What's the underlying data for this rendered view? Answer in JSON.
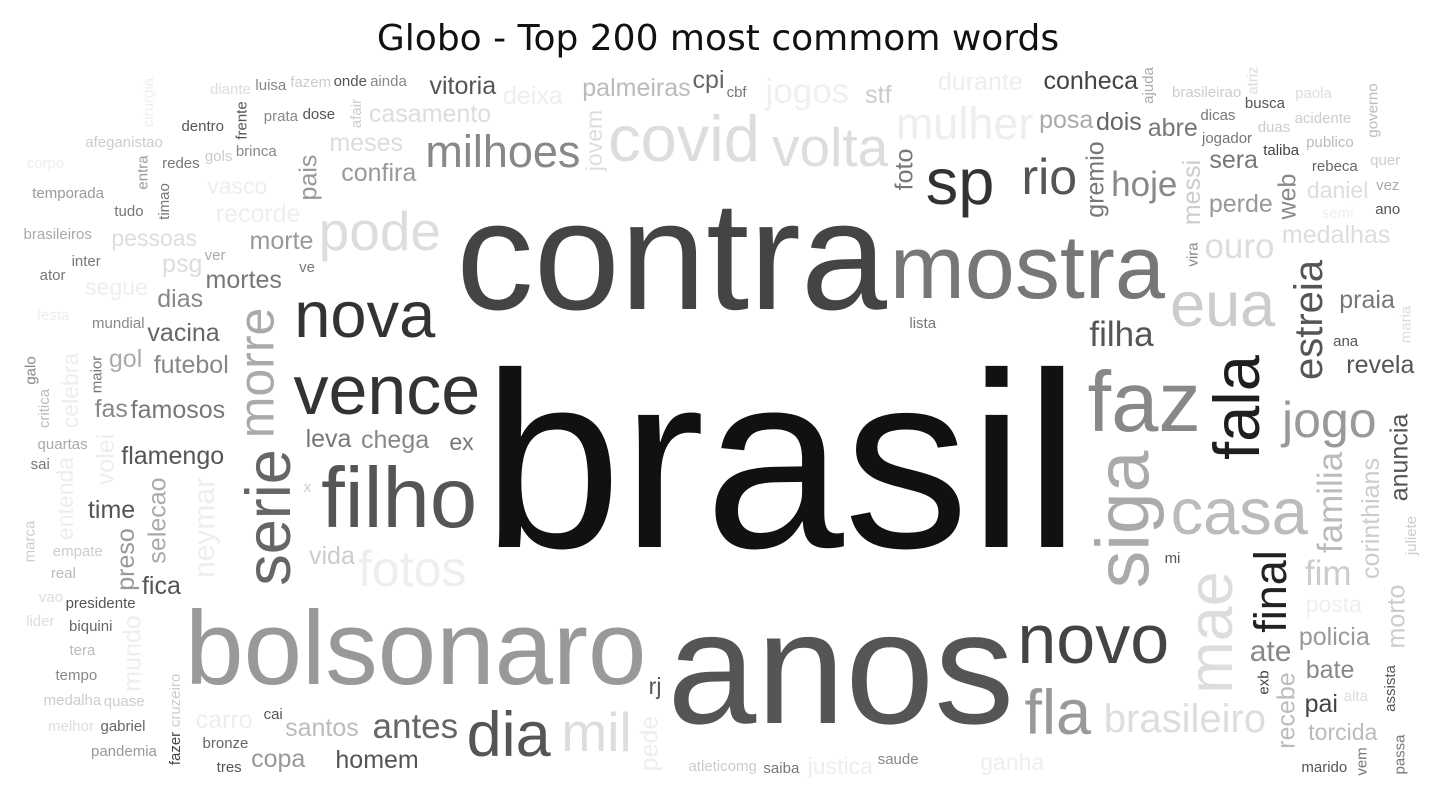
{
  "chart_data": {
    "type": "wordcloud",
    "title": "Globo - Top 200 most commom words",
    "colormap": "grayscale",
    "words": [
      {
        "text": "brasil",
        "weight": 100,
        "color": "#111111"
      },
      {
        "text": "anos",
        "weight": 64,
        "color": "#555555"
      },
      {
        "text": "contra",
        "weight": 62,
        "color": "#444444"
      },
      {
        "text": "bolsonaro",
        "weight": 42,
        "color": "#999999"
      },
      {
        "text": "mostra",
        "weight": 36,
        "color": "#777777"
      },
      {
        "text": "filho",
        "weight": 34,
        "color": "#555555"
      },
      {
        "text": "faz",
        "weight": 34,
        "color": "#888888"
      },
      {
        "text": "siga",
        "weight": 30,
        "color": "#aaaaaa"
      },
      {
        "text": "vence",
        "weight": 28,
        "color": "#333333"
      },
      {
        "text": "novo",
        "weight": 28,
        "color": "#444444"
      },
      {
        "text": "casa",
        "weight": 26,
        "color": "#bbbbbb"
      },
      {
        "text": "fala",
        "weight": 26,
        "color": "#1e1e1e"
      },
      {
        "text": "nova",
        "weight": 26,
        "color": "#333333"
      },
      {
        "text": "sp",
        "weight": 26,
        "color": "#333333"
      },
      {
        "text": "covid",
        "weight": 26,
        "color": "#dddddd"
      },
      {
        "text": "mae",
        "weight": 25,
        "color": "#dddddd"
      },
      {
        "text": "eua",
        "weight": 25,
        "color": "#cccccc"
      },
      {
        "text": "fla",
        "weight": 25,
        "color": "#999999"
      },
      {
        "text": "dia",
        "weight": 25,
        "color": "#555555"
      },
      {
        "text": "serie",
        "weight": 25,
        "color": "#666666"
      },
      {
        "text": "volta",
        "weight": 22,
        "color": "#dddddd"
      },
      {
        "text": "pode",
        "weight": 22,
        "color": "#dddddd"
      },
      {
        "text": "mil",
        "weight": 22,
        "color": "#dddddd"
      },
      {
        "text": "morre",
        "weight": 20,
        "color": "#aaaaaa"
      },
      {
        "text": "fotos",
        "weight": 20,
        "color": "#eeeeee"
      },
      {
        "text": "rio",
        "weight": 20,
        "color": "#555555"
      },
      {
        "text": "jogo",
        "weight": 20,
        "color": "#999999"
      },
      {
        "text": "final",
        "weight": 18,
        "color": "#222222"
      },
      {
        "text": "milhoes",
        "weight": 18,
        "color": "#888888"
      },
      {
        "text": "mulher",
        "weight": 18,
        "color": "#eeeeee"
      },
      {
        "text": "brasileiro",
        "weight": 16,
        "color": "#dddddd"
      },
      {
        "text": "estreia",
        "weight": 16,
        "color": "#555555"
      },
      {
        "text": "filha",
        "weight": 14,
        "color": "#555555"
      },
      {
        "text": "antes",
        "weight": 14,
        "color": "#666666"
      },
      {
        "text": "hoje",
        "weight": 14,
        "color": "#888888"
      },
      {
        "text": "familia",
        "weight": 14,
        "color": "#bbbbbb"
      },
      {
        "text": "ouro",
        "weight": 14,
        "color": "#dddddd"
      },
      {
        "text": "jogos",
        "weight": 14,
        "color": "#f0f0f0"
      },
      {
        "text": "fim",
        "weight": 14,
        "color": "#cccccc"
      },
      {
        "text": "neymar",
        "weight": 12,
        "color": "#eeeeee"
      },
      {
        "text": "ate",
        "weight": 12,
        "color": "#888888"
      },
      {
        "text": "chega",
        "weight": 10,
        "color": "#888888"
      },
      {
        "text": "flamengo",
        "weight": 10,
        "color": "#555555"
      },
      {
        "text": "gremio",
        "weight": 10,
        "color": "#777777"
      },
      {
        "text": "famosos",
        "weight": 10,
        "color": "#777777"
      },
      {
        "text": "futebol",
        "weight": 10,
        "color": "#888888"
      },
      {
        "text": "mortes",
        "weight": 10,
        "color": "#777777"
      },
      {
        "text": "corinthians",
        "weight": 10,
        "color": "#cccccc"
      },
      {
        "text": "palmeiras",
        "weight": 10,
        "color": "#bbbbbb"
      },
      {
        "text": "confira",
        "weight": 10,
        "color": "#999999"
      },
      {
        "text": "morte",
        "weight": 10,
        "color": "#999999"
      },
      {
        "text": "pede",
        "weight": 10,
        "color": "#eeeeee"
      },
      {
        "text": "perde",
        "weight": 10,
        "color": "#999999"
      },
      {
        "text": "revela",
        "weight": 10,
        "color": "#555555"
      },
      {
        "text": "homem",
        "weight": 10,
        "color": "#555555"
      },
      {
        "text": "anuncia",
        "weight": 10,
        "color": "#555555"
      },
      {
        "text": "policia",
        "weight": 10,
        "color": "#999999"
      },
      {
        "text": "santos",
        "weight": 10,
        "color": "#bbbbbb"
      },
      {
        "text": "vacina",
        "weight": 10,
        "color": "#666666"
      },
      {
        "text": "selecao",
        "weight": 10,
        "color": "#aaaaaa"
      },
      {
        "text": "posa",
        "weight": 10,
        "color": "#aaaaaa"
      },
      {
        "text": "deixa",
        "weight": 10,
        "color": "#eeeeee"
      },
      {
        "text": "durante",
        "weight": 10,
        "color": "#eeeeee"
      },
      {
        "text": "messi",
        "weight": 10,
        "color": "#cccccc"
      },
      {
        "text": "recorde",
        "weight": 10,
        "color": "#eeeeee"
      },
      {
        "text": "casamento",
        "weight": 10,
        "color": "#dddddd"
      },
      {
        "text": "praia",
        "weight": 10,
        "color": "#777777"
      },
      {
        "text": "recebe",
        "weight": 10,
        "color": "#bbbbbb"
      },
      {
        "text": "meses",
        "weight": 10,
        "color": "#dddddd"
      },
      {
        "text": "leva",
        "weight": 10,
        "color": "#777777"
      },
      {
        "text": "bate",
        "weight": 10,
        "color": "#888888"
      },
      {
        "text": "pais",
        "weight": 10,
        "color": "#999999"
      },
      {
        "text": "abre",
        "weight": 10,
        "color": "#777777"
      },
      {
        "text": "medalhas",
        "weight": 10,
        "color": "#dddddd"
      },
      {
        "text": "vida",
        "weight": 10,
        "color": "#cccccc"
      },
      {
        "text": "foto",
        "weight": 10,
        "color": "#777777"
      },
      {
        "text": "dois",
        "weight": 10,
        "color": "#666666"
      },
      {
        "text": "sera",
        "weight": 10,
        "color": "#777777"
      },
      {
        "text": "fica",
        "weight": 10,
        "color": "#555555"
      },
      {
        "text": "web",
        "weight": 10,
        "color": "#888888"
      },
      {
        "text": "dias",
        "weight": 10,
        "color": "#888888"
      },
      {
        "text": "conheca",
        "weight": 10,
        "color": "#444444"
      },
      {
        "text": "vitoria",
        "weight": 10,
        "color": "#555555"
      },
      {
        "text": "morto",
        "weight": 10,
        "color": "#cccccc"
      },
      {
        "text": "time",
        "weight": 10,
        "color": "#555555"
      },
      {
        "text": "pai",
        "weight": 10,
        "color": "#444444"
      },
      {
        "text": "copa",
        "weight": 10,
        "color": "#999999"
      },
      {
        "text": "preso",
        "weight": 10,
        "color": "#999999"
      },
      {
        "text": "cpi",
        "weight": 10,
        "color": "#666666"
      },
      {
        "text": "fas",
        "weight": 10,
        "color": "#888888"
      },
      {
        "text": "stf",
        "weight": 10,
        "color": "#cccccc"
      },
      {
        "text": "volei",
        "weight": 10,
        "color": "#eeeeee"
      },
      {
        "text": "gol",
        "weight": 10,
        "color": "#aaaaaa"
      },
      {
        "text": "psg",
        "weight": 10,
        "color": "#dddddd"
      },
      {
        "text": "carro",
        "weight": 10,
        "color": "#eeeeee"
      },
      {
        "text": "mundo",
        "weight": 10,
        "color": "#eeeeee"
      },
      {
        "text": "justica",
        "weight": 9,
        "color": "#eeeeee"
      },
      {
        "text": "ganha",
        "weight": 9,
        "color": "#eeeeee"
      },
      {
        "text": "posta",
        "weight": 9,
        "color": "#eeeeee"
      },
      {
        "text": "entenda",
        "weight": 9,
        "color": "#eeeeee"
      },
      {
        "text": "vasco",
        "weight": 9,
        "color": "#eeeeee"
      },
      {
        "text": "daniel",
        "weight": 9,
        "color": "#dddddd"
      },
      {
        "text": "torcida",
        "weight": 9,
        "color": "#bbbbbb"
      },
      {
        "text": "jovem",
        "weight": 9,
        "color": "#dddddd"
      },
      {
        "text": "pessoas",
        "weight": 9,
        "color": "#dddddd"
      },
      {
        "text": "ex",
        "weight": 9,
        "color": "#777777"
      },
      {
        "text": "rj",
        "weight": 9,
        "color": "#555555"
      },
      {
        "text": "celebra",
        "weight": 9,
        "color": "#eeeeee"
      },
      {
        "text": "segue",
        "weight": 9,
        "color": "#eeeeee"
      },
      {
        "text": "lista",
        "weight": 6,
        "color": "#777777"
      },
      {
        "text": "atleticomg",
        "weight": 6,
        "color": "#cccccc"
      },
      {
        "text": "juliete",
        "weight": 6,
        "color": "#cccccc"
      },
      {
        "text": "saude",
        "weight": 6,
        "color": "#888888"
      },
      {
        "text": "jogador",
        "weight": 6,
        "color": "#777777"
      },
      {
        "text": "saiba",
        "weight": 6,
        "color": "#777777"
      },
      {
        "text": "maria",
        "weight": 6,
        "color": "#dddddd"
      },
      {
        "text": "semi",
        "weight": 6,
        "color": "#eeeeee"
      },
      {
        "text": "mundial",
        "weight": 6,
        "color": "#888888"
      },
      {
        "text": "dicas",
        "weight": 6,
        "color": "#777777"
      },
      {
        "text": "assista",
        "weight": 6,
        "color": "#555555"
      },
      {
        "text": "presidente",
        "weight": 6,
        "color": "#555555"
      },
      {
        "text": "empate",
        "weight": 6,
        "color": "#cccccc"
      },
      {
        "text": "ana",
        "weight": 6,
        "color": "#555555"
      },
      {
        "text": "maior",
        "weight": 6,
        "color": "#777777"
      },
      {
        "text": "alta",
        "weight": 6,
        "color": "#dddddd"
      },
      {
        "text": "quartas",
        "weight": 6,
        "color": "#aaaaaa"
      },
      {
        "text": "bronze",
        "weight": 6,
        "color": "#666666"
      },
      {
        "text": "ajuda",
        "weight": 6,
        "color": "#aaaaaa"
      },
      {
        "text": "taliba",
        "weight": 6,
        "color": "#444444"
      },
      {
        "text": "brinca",
        "weight": 6,
        "color": "#888888"
      },
      {
        "text": "dose",
        "weight": 6,
        "color": "#555555"
      },
      {
        "text": "vira",
        "weight": 6,
        "color": "#888888"
      },
      {
        "text": "ainda",
        "weight": 6,
        "color": "#888888"
      },
      {
        "text": "brasileirao",
        "weight": 6,
        "color": "#cccccc"
      },
      {
        "text": "rebeca",
        "weight": 6,
        "color": "#666666"
      },
      {
        "text": "cruzeiro",
        "weight": 6,
        "color": "#cccccc"
      },
      {
        "text": "marido",
        "weight": 6,
        "color": "#555555"
      },
      {
        "text": "duas",
        "weight": 6,
        "color": "#cccccc"
      },
      {
        "text": "ano",
        "weight": 6,
        "color": "#555555"
      },
      {
        "text": "critica",
        "weight": 6,
        "color": "#bbbbbb"
      },
      {
        "text": "biquini",
        "weight": 6,
        "color": "#666666"
      },
      {
        "text": "tres",
        "weight": 6,
        "color": "#555555"
      },
      {
        "text": "real",
        "weight": 6,
        "color": "#bbbbbb"
      },
      {
        "text": "timao",
        "weight": 6,
        "color": "#777777"
      },
      {
        "text": "busca",
        "weight": 6,
        "color": "#555555"
      },
      {
        "text": "prata",
        "weight": 6,
        "color": "#888888"
      },
      {
        "text": "onde",
        "weight": 6,
        "color": "#555555"
      },
      {
        "text": "fazer",
        "weight": 6,
        "color": "#444444"
      },
      {
        "text": "publico",
        "weight": 6,
        "color": "#bbbbbb"
      },
      {
        "text": "gols",
        "weight": 6,
        "color": "#cccccc"
      },
      {
        "text": "mi",
        "weight": 6,
        "color": "#555555"
      },
      {
        "text": "afair",
        "weight": 6,
        "color": "#cccccc"
      },
      {
        "text": "quase",
        "weight": 6,
        "color": "#cccccc"
      },
      {
        "text": "vez",
        "weight": 6,
        "color": "#aaaaaa"
      },
      {
        "text": "tera",
        "weight": 6,
        "color": "#bbbbbb"
      },
      {
        "text": "marca",
        "weight": 6,
        "color": "#cccccc"
      },
      {
        "text": "festa",
        "weight": 6,
        "color": "#eeeeee"
      },
      {
        "text": "inter",
        "weight": 6,
        "color": "#777777"
      },
      {
        "text": "acidente",
        "weight": 6,
        "color": "#cccccc"
      },
      {
        "text": "frente",
        "weight": 6,
        "color": "#555555"
      },
      {
        "text": "ve",
        "weight": 6,
        "color": "#777777"
      },
      {
        "text": "tudo",
        "weight": 6,
        "color": "#777777"
      },
      {
        "text": "redes",
        "weight": 6,
        "color": "#777777"
      },
      {
        "text": "exb",
        "weight": 6,
        "color": "#444444"
      },
      {
        "text": "fazem",
        "weight": 6,
        "color": "#cccccc"
      },
      {
        "text": "quer",
        "weight": 6,
        "color": "#cccccc"
      },
      {
        "text": "cbf",
        "weight": 6,
        "color": "#777777"
      },
      {
        "text": "passa",
        "weight": 6,
        "color": "#777777"
      },
      {
        "text": "gabriel",
        "weight": 6,
        "color": "#666666"
      },
      {
        "text": "tempo",
        "weight": 6,
        "color": "#888888"
      },
      {
        "text": "lider",
        "weight": 6,
        "color": "#dddddd"
      },
      {
        "text": "vem",
        "weight": 6,
        "color": "#777777"
      },
      {
        "text": "ator",
        "weight": 6,
        "color": "#777777"
      },
      {
        "text": "pandemia",
        "weight": 6,
        "color": "#999999"
      },
      {
        "text": "brasileiros",
        "weight": 6,
        "color": "#aaaaaa"
      },
      {
        "text": "galo",
        "weight": 6,
        "color": "#888888"
      },
      {
        "text": "dentro",
        "weight": 6,
        "color": "#555555"
      },
      {
        "text": "ver",
        "weight": 6,
        "color": "#aaaaaa"
      },
      {
        "text": "medalha",
        "weight": 6,
        "color": "#cccccc"
      },
      {
        "text": "entra",
        "weight": 6,
        "color": "#999999"
      },
      {
        "text": "cai",
        "weight": 6,
        "color": "#555555"
      },
      {
        "text": "sai",
        "weight": 6,
        "color": "#777777"
      },
      {
        "text": "luisa",
        "weight": 6,
        "color": "#888888"
      },
      {
        "text": "governo",
        "weight": 6,
        "color": "#bbbbbb"
      },
      {
        "text": "temporada",
        "weight": 6,
        "color": "#999999"
      },
      {
        "text": "afeganistao",
        "weight": 6,
        "color": "#cccccc"
      },
      {
        "text": "vao",
        "weight": 6,
        "color": "#dddddd"
      },
      {
        "text": "atriz",
        "weight": 6,
        "color": "#dddddd"
      },
      {
        "text": "paola",
        "weight": 6,
        "color": "#dddddd"
      },
      {
        "text": "melhor",
        "weight": 6,
        "color": "#dddddd"
      },
      {
        "text": "diante",
        "weight": 6,
        "color": "#dddddd"
      },
      {
        "text": "cirurgia",
        "weight": 6,
        "color": "#eeeeee"
      },
      {
        "text": "corpo",
        "weight": 6,
        "color": "#eeeeee"
      },
      {
        "text": "x",
        "weight": 6,
        "color": "#cccccc"
      }
    ]
  }
}
